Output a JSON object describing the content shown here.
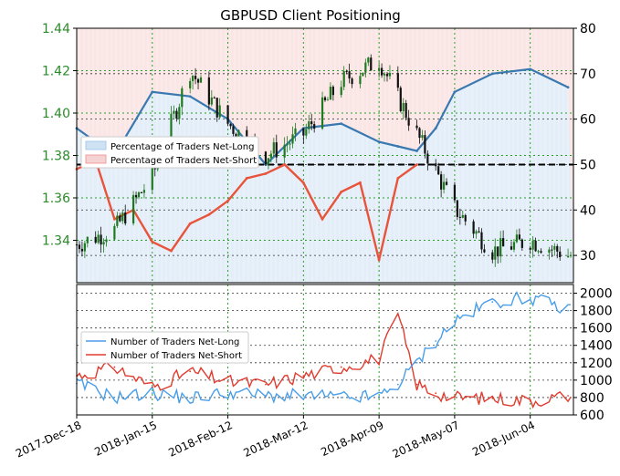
{
  "chart_data": [
    {
      "type": "line",
      "title": "GBPUSD Client Positioning",
      "x_ticks": [
        "2017-Dec-18",
        "2018-Jan-15",
        "2018-Feb-12",
        "2018-Mar-12",
        "2018-Apr-09",
        "2018-May-07",
        "2018-Jun-04"
      ],
      "left_axis": {
        "ylim": [
          1.32,
          1.44
        ],
        "ticks": [
          "1.34",
          "1.36",
          "1.38",
          "1.40",
          "1.42",
          "1.44"
        ]
      },
      "right_axis": {
        "ylim": [
          24,
          80
        ],
        "ticks": [
          "30",
          "40",
          "50",
          "60",
          "70",
          "80"
        ]
      },
      "reference_line": 50,
      "legend": {
        "position": "middle-left",
        "entries": [
          "Percentage of Traders Net-Long",
          "Percentage of Traders Net-Short"
        ]
      },
      "price_candles_approx": {
        "description": "GBPUSD close, approximate weekly checkpoints",
        "x": [
          "2017-Dec-18",
          "2018-Jan-01",
          "2018-Jan-15",
          "2018-Jan-29",
          "2018-Feb-12",
          "2018-Feb-26",
          "2018-Mar-12",
          "2018-Mar-26",
          "2018-Apr-09",
          "2018-Apr-23",
          "2018-May-07",
          "2018-May-21",
          "2018-Jun-04",
          "2018-Jun-18"
        ],
        "close": [
          1.338,
          1.345,
          1.37,
          1.42,
          1.395,
          1.38,
          1.39,
          1.415,
          1.425,
          1.39,
          1.355,
          1.335,
          1.34,
          1.333
        ]
      },
      "series": [
        {
          "name": "Percentage of Traders Net-Long",
          "color": "#3a78b0",
          "fill": "#cfe2f3",
          "x": [
            "2017-Dec-18",
            "2018-Jan-01",
            "2018-Jan-15",
            "2018-Jan-29",
            "2018-Feb-12",
            "2018-Feb-26",
            "2018-Mar-12",
            "2018-Mar-26",
            "2018-Apr-09",
            "2018-Apr-16",
            "2018-Apr-23",
            "2018-Apr-30",
            "2018-May-07",
            "2018-May-21",
            "2018-Jun-04",
            "2018-Jun-18"
          ],
          "values": [
            58,
            52,
            66,
            65,
            60,
            50,
            58,
            59,
            55,
            54,
            53,
            58,
            66,
            70,
            71,
            67
          ]
        },
        {
          "name": "Percentage of Traders Net-Short",
          "color": "#e8533c",
          "fill": "#f6d3d3",
          "x": [
            "2017-Dec-18",
            "2017-Dec-25",
            "2018-Jan-01",
            "2018-Jan-08",
            "2018-Jan-15",
            "2018-Jan-22",
            "2018-Jan-29",
            "2018-Feb-05",
            "2018-Feb-12",
            "2018-Feb-19",
            "2018-Feb-26",
            "2018-Mar-05",
            "2018-Mar-12",
            "2018-Mar-19",
            "2018-Mar-26",
            "2018-Apr-02",
            "2018-Apr-09",
            "2018-Apr-16",
            "2018-Apr-23"
          ],
          "values": [
            49,
            51,
            38,
            40,
            33,
            31,
            37,
            39,
            42,
            47,
            48,
            50,
            46,
            38,
            44,
            46,
            29,
            47,
            50
          ]
        }
      ]
    },
    {
      "type": "line",
      "right_axis": {
        "ylim": [
          600,
          2100
        ],
        "ticks": [
          "600",
          "800",
          "1000",
          "1200",
          "1400",
          "1600",
          "1800",
          "2000"
        ]
      },
      "legend": {
        "position": "middle-left",
        "entries": [
          "Number of Traders Net-Long",
          "Number of Traders Net-Short"
        ]
      },
      "series": [
        {
          "name": "Number of Traders Net-Long",
          "color": "#4a9ee8",
          "x": [
            "2017-Dec-18",
            "2018-Jan-01",
            "2018-Jan-15",
            "2018-Jan-29",
            "2018-Feb-12",
            "2018-Feb-26",
            "2018-Mar-12",
            "2018-Mar-26",
            "2018-Apr-09",
            "2018-Apr-16",
            "2018-Apr-23",
            "2018-Apr-30",
            "2018-May-07",
            "2018-May-21",
            "2018-Jun-04",
            "2018-Jun-18"
          ],
          "values": [
            960,
            800,
            850,
            790,
            860,
            820,
            820,
            800,
            810,
            950,
            1200,
            1450,
            1680,
            1900,
            1950,
            1800
          ]
        },
        {
          "name": "Number of Traders Net-Short",
          "color": "#e03c2f",
          "x": [
            "2017-Dec-18",
            "2018-Jan-01",
            "2018-Jan-15",
            "2018-Jan-29",
            "2018-Feb-12",
            "2018-Feb-26",
            "2018-Mar-12",
            "2018-Mar-26",
            "2018-Apr-09",
            "2018-Apr-16",
            "2018-Apr-23",
            "2018-Apr-30",
            "2018-May-07",
            "2018-May-21",
            "2018-Jun-04",
            "2018-Jun-18"
          ],
          "values": [
            1050,
            1150,
            920,
            1100,
            980,
            950,
            1050,
            1150,
            1250,
            1750,
            950,
            850,
            800,
            790,
            760,
            820
          ]
        }
      ]
    }
  ]
}
